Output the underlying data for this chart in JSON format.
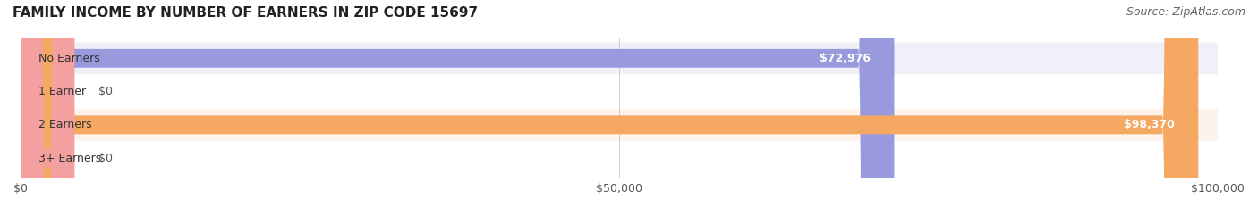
{
  "title": "FAMILY INCOME BY NUMBER OF EARNERS IN ZIP CODE 15697",
  "source": "Source: ZipAtlas.com",
  "categories": [
    "No Earners",
    "1 Earner",
    "2 Earners",
    "3+ Earners"
  ],
  "values": [
    72976,
    0,
    98370,
    0
  ],
  "bar_colors": [
    "#9999dd",
    "#f4a0a0",
    "#f4a862",
    "#f4a0a0"
  ],
  "label_colors": [
    "#9999dd",
    "#f4a0a0",
    "#f4a862",
    "#f4a0a0"
  ],
  "value_labels": [
    "$72,976",
    "$0",
    "$98,370",
    "$0"
  ],
  "row_bg_colors": [
    "#f0f0f8",
    "#ffffff",
    "#fdf3ea",
    "#ffffff"
  ],
  "xlim": [
    0,
    100000
  ],
  "xticks": [
    0,
    50000,
    100000
  ],
  "xticklabels": [
    "$0",
    "$50,000",
    "$100,000"
  ],
  "title_fontsize": 11,
  "source_fontsize": 9,
  "bar_height": 0.55,
  "figsize": [
    14.06,
    2.33
  ],
  "dpi": 100
}
